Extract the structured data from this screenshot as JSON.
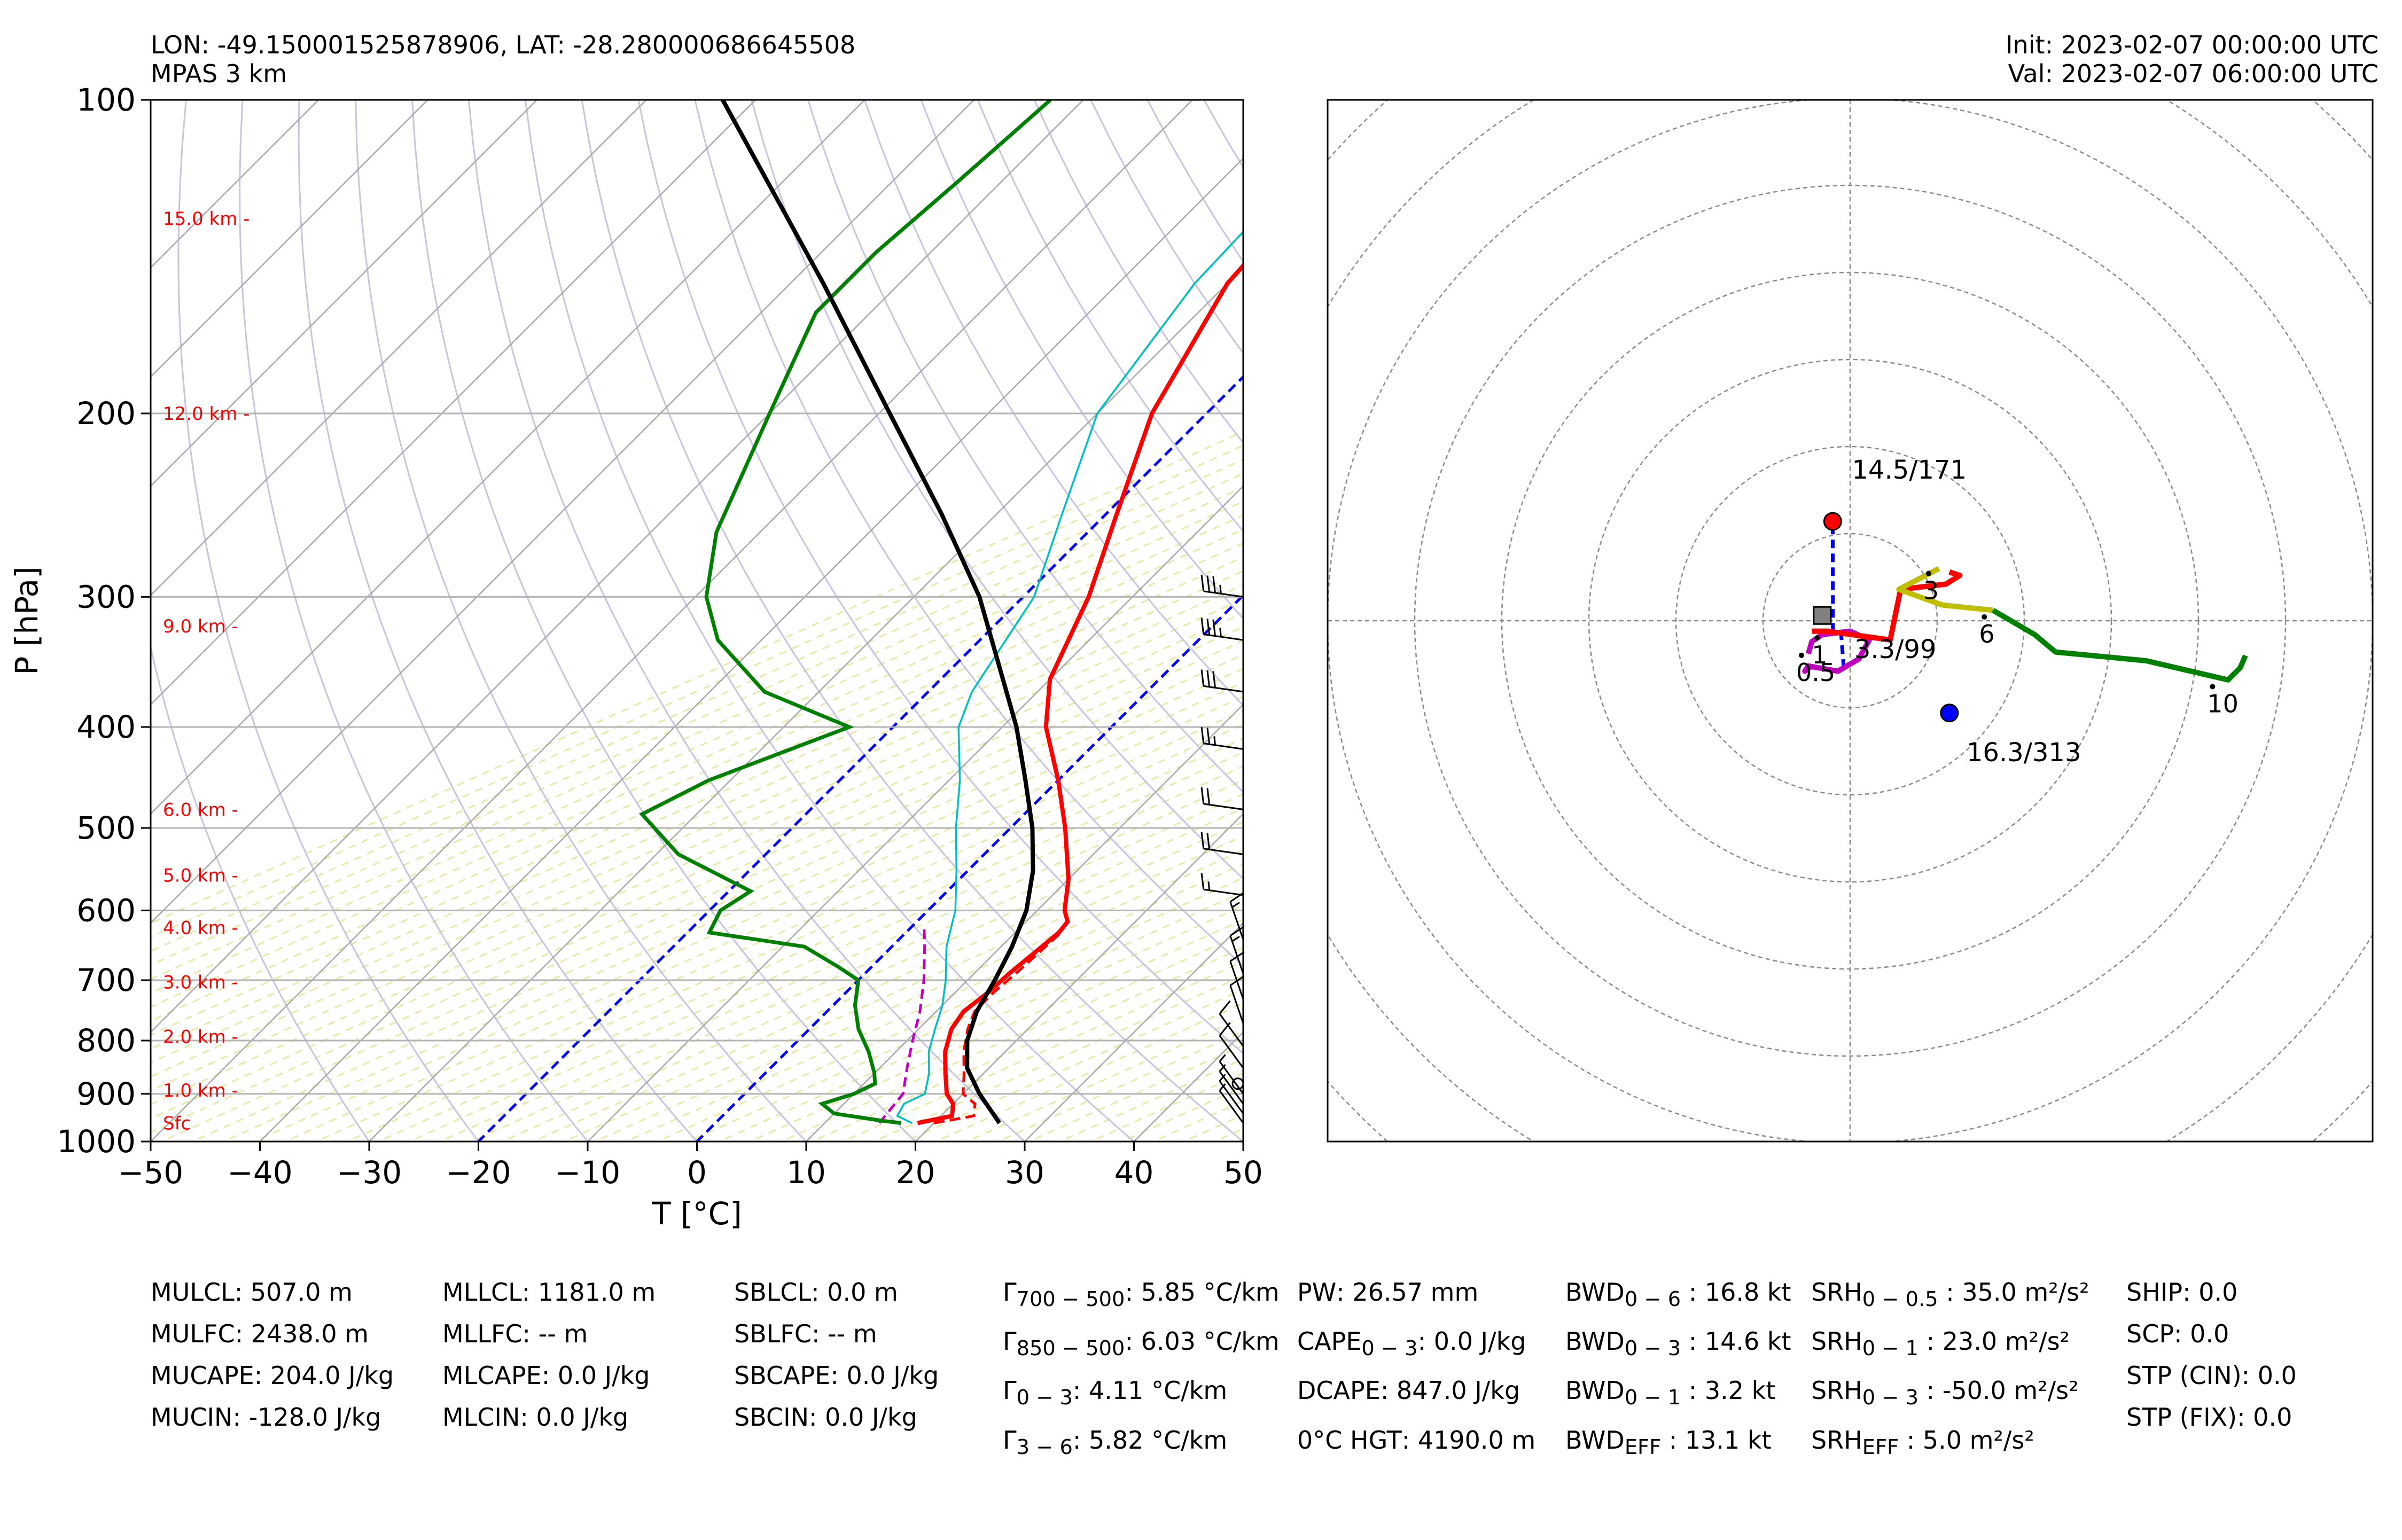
{
  "header": {
    "location": "LON: -49.150001525878906, LAT: -28.280000686645508",
    "model": "MPAS 3 km",
    "init": "Init: 2023-02-07 00:00:00 UTC",
    "valid": "Val: 2023-02-07 06:00:00 UTC"
  },
  "colors": {
    "temperature": "#ff0000",
    "virtual_temperature": "#ff0000",
    "dewpoint": "#008000",
    "wetbulb": "#00bfbf",
    "parcel": "#000000",
    "downdraft": "#bf00bf",
    "isotherm_0_minus20": "#0000ff",
    "hodo_0_1km": "#bf00bf",
    "hodo_1_3km": "#ff0000",
    "hodo_3_6km": "#bfbf00",
    "hodo_6_10km": "#008000"
  },
  "chart_data": [
    {
      "type": "line",
      "title": "",
      "xlabel": "T [°C]",
      "ylabel": "P [hPa]",
      "xlim": [
        -50,
        50
      ],
      "ylim": [
        1000,
        100
      ],
      "y_scale": "log",
      "skew": 45,
      "x_ticks": [
        "−50",
        "−40",
        "−30",
        "−20",
        "−10",
        "0",
        "10",
        "20",
        "30",
        "40",
        "50"
      ],
      "y_ticks": [
        "100",
        "200",
        "300",
        "400",
        "500",
        "600",
        "700",
        "800",
        "900",
        "1000"
      ],
      "height_labels": [
        {
          "label": "15.0 km -",
          "p": 130
        },
        {
          "label": "12.0 km -",
          "p": 200
        },
        {
          "label": "9.0 km -",
          "p": 320
        },
        {
          "label": "6.0 km -",
          "p": 480
        },
        {
          "label": "5.0 km -",
          "p": 555
        },
        {
          "label": "4.0 km -",
          "p": 623
        },
        {
          "label": "3.0 km -",
          "p": 703
        },
        {
          "label": "2.0 km -",
          "p": 793
        },
        {
          "label": "1.0 km -",
          "p": 893
        },
        {
          "label": "Sfc",
          "p": 960
        }
      ],
      "series": [
        {
          "name": "",
          "key": "temperature",
          "points": [
            [
              960,
              18.5
            ],
            [
              945,
              21
            ],
            [
              920,
              20
            ],
            [
              900,
              18.5
            ],
            [
              860,
              16.5
            ],
            [
              820,
              14.5
            ],
            [
              780,
              13
            ],
            [
              750,
              12.5
            ],
            [
              720,
              13
            ],
            [
              690,
              13.2
            ],
            [
              660,
              13.6
            ],
            [
              630,
              14
            ],
            [
              615,
              13.8
            ],
            [
              600,
              12.5
            ],
            [
              560,
              10
            ],
            [
              500,
              5
            ],
            [
              450,
              0
            ],
            [
              400,
              -6
            ],
            [
              360,
              -10
            ],
            [
              300,
              -14
            ],
            [
              250,
              -19
            ],
            [
              200,
              -25
            ],
            [
              150,
              -30
            ],
            [
              120,
              -31
            ],
            [
              100,
              -32
            ]
          ]
        },
        {
          "name": "",
          "key": "virtual_temperature",
          "points": [
            [
              960,
              20
            ],
            [
              945,
              23
            ],
            [
              920,
              22
            ],
            [
              900,
              20
            ],
            [
              860,
              18.2
            ],
            [
              820,
              16.2
            ],
            [
              780,
              14.5
            ],
            [
              750,
              13.5
            ],
            [
              720,
              13.5
            ],
            [
              690,
              13.8
            ],
            [
              660,
              14
            ],
            [
              630,
              14.2
            ]
          ]
        },
        {
          "name": "",
          "key": "wetbulb",
          "points": [
            [
              960,
              18
            ],
            [
              945,
              16
            ],
            [
              920,
              15.5
            ],
            [
              900,
              16.5
            ],
            [
              860,
              15
            ],
            [
              820,
              13
            ],
            [
              780,
              11.5
            ],
            [
              740,
              10
            ],
            [
              700,
              8
            ],
            [
              650,
              5
            ],
            [
              600,
              2.5
            ],
            [
              550,
              -1
            ],
            [
              500,
              -5
            ],
            [
              450,
              -9
            ],
            [
              400,
              -14
            ],
            [
              370,
              -16
            ],
            [
              300,
              -19
            ],
            [
              250,
              -24
            ],
            [
              200,
              -30
            ],
            [
              150,
              -33
            ],
            [
              100,
              -34
            ]
          ]
        },
        {
          "name": "",
          "key": "dewpoint",
          "points": [
            [
              960,
              17
            ],
            [
              955,
              15
            ],
            [
              940,
              10
            ],
            [
              920,
              8
            ],
            [
              900,
              10
            ],
            [
              880,
              11
            ],
            [
              860,
              10
            ],
            [
              820,
              7.5
            ],
            [
              780,
              4.5
            ],
            [
              740,
              2
            ],
            [
              700,
              0
            ],
            [
              680,
              -3
            ],
            [
              650,
              -8
            ],
            [
              630,
              -18
            ],
            [
              600,
              -19
            ],
            [
              575,
              -18
            ],
            [
              530,
              -28
            ],
            [
              485,
              -35
            ],
            [
              450,
              -32
            ],
            [
              400,
              -24
            ],
            [
              370,
              -35
            ],
            [
              330,
              -44
            ],
            [
              300,
              -49
            ],
            [
              260,
              -54
            ],
            [
              200,
              -60
            ],
            [
              160,
              -65
            ],
            [
              140,
              -65
            ],
            [
              120,
              -64
            ],
            [
              100,
              -63
            ]
          ]
        },
        {
          "name": "",
          "key": "parcel",
          "points": [
            [
              960,
              26
            ],
            [
              900,
              21.5
            ],
            [
              850,
              18
            ],
            [
              800,
              15.5
            ],
            [
              750,
              13.7
            ],
            [
              700,
              12.5
            ],
            [
              650,
              11
            ],
            [
              600,
              9
            ],
            [
              550,
              6
            ],
            [
              500,
              2
            ],
            [
              450,
              -3
            ],
            [
              400,
              -8.7
            ],
            [
              350,
              -15.8
            ],
            [
              300,
              -24
            ],
            [
              250,
              -35
            ],
            [
              200,
              -49
            ],
            [
              150,
              -67
            ],
            [
              100,
              -93
            ]
          ]
        },
        {
          "name": "",
          "key": "downdraft",
          "points": [
            [
              960,
              15
            ],
            [
              900,
              14.5
            ],
            [
              850,
              12.5
            ],
            [
              800,
              10.5
            ],
            [
              750,
              8.5
            ],
            [
              700,
              6
            ],
            [
              650,
              3
            ],
            [
              620,
              1
            ]
          ]
        }
      ],
      "wind_barbs_kt": [
        {
          "p": 960,
          "speed": 5
        },
        {
          "p": 940,
          "speed": 5
        },
        {
          "p": 920,
          "speed": 5
        },
        {
          "p": 900,
          "speed": 5
        },
        {
          "p": 880,
          "speed": 0
        },
        {
          "p": 850,
          "speed": 10
        },
        {
          "p": 810,
          "speed": 10
        },
        {
          "p": 770,
          "speed": 10
        },
        {
          "p": 730,
          "speed": 10
        },
        {
          "p": 690,
          "speed": 15
        },
        {
          "p": 640,
          "speed": 15
        },
        {
          "p": 580,
          "speed": 15
        },
        {
          "p": 530,
          "speed": 20
        },
        {
          "p": 480,
          "speed": 20
        },
        {
          "p": 420,
          "speed": 25
        },
        {
          "p": 370,
          "speed": 30
        },
        {
          "p": 330,
          "speed": 35
        },
        {
          "p": 300,
          "speed": 35
        }
      ]
    },
    {
      "type": "line",
      "title": "",
      "xlim": [
        -30,
        30
      ],
      "ylim": [
        -23,
        23
      ],
      "ring_step": 5,
      "series": [
        {
          "name": "",
          "key": "hodo_0_1km",
          "points": [
            [
              -2.2,
              -2.6
            ],
            [
              -2.6,
              -2.9
            ],
            [
              -2.4,
              -2.6
            ],
            [
              -0.7,
              -2.9
            ],
            [
              0.5,
              -2.2
            ],
            [
              1.1,
              -1.1
            ],
            [
              0,
              -0.6
            ],
            [
              -1.6,
              -0.8
            ],
            [
              -2.2,
              -1.2
            ],
            [
              -2.4,
              -1.9
            ]
          ]
        },
        {
          "name": "",
          "key": "hodo_1_3km",
          "points": [
            [
              -2.2,
              -0.6
            ],
            [
              -1.3,
              -0.6
            ],
            [
              2.3,
              -1.1
            ],
            [
              2.9,
              1.8
            ],
            [
              5.5,
              2.1
            ],
            [
              6.3,
              2.6
            ],
            [
              5.7,
              2.8
            ]
          ]
        },
        {
          "name": "",
          "key": "hodo_3_6km",
          "points": [
            [
              5.1,
              3.0
            ],
            [
              2.8,
              1.8
            ],
            [
              5.3,
              0.9
            ],
            [
              8.2,
              0.6
            ]
          ]
        },
        {
          "name": "",
          "key": "hodo_6_10km",
          "points": [
            [
              8.2,
              0.6
            ],
            [
              10.6,
              -0.8
            ],
            [
              11.8,
              -1.8
            ],
            [
              17,
              -2.3
            ],
            [
              21.7,
              -3.4
            ],
            [
              22.4,
              -2.7
            ],
            [
              22.7,
              -2.0
            ]
          ]
        }
      ],
      "height_labels": [
        {
          "label": "0.5",
          "u": -3.1,
          "v": -2.6
        },
        {
          "label": "1",
          "u": -2.2,
          "v": -1.6
        },
        {
          "label": "3",
          "u": 4.2,
          "v": 2.1
        },
        {
          "label": "6",
          "u": 7.4,
          "v": -0.4
        },
        {
          "label": "10",
          "u": 20.5,
          "v": -4.4
        }
      ],
      "markers": [
        {
          "label": "14.5/171",
          "u": -1.0,
          "v": 5.7,
          "color": "#ff0000",
          "shape": "circle"
        },
        {
          "label": "16.3/313",
          "u": 5.7,
          "v": -5.3,
          "color": "#0000ff",
          "shape": "circle"
        },
        {
          "label": "3.3/99",
          "u": -1.6,
          "v": 0.3,
          "color": "#808080",
          "shape": "square"
        }
      ]
    }
  ],
  "indices": {
    "col1": [
      "MULCL: 507.0 m",
      "MULFC: 2438.0 m",
      "MUCAPE: 204.0 J/kg",
      "MUCIN: -128.0 J/kg"
    ],
    "col2": [
      "MLLCL: 1181.0 m",
      "MLLFC: -- m",
      "MLCAPE: 0.0 J/kg",
      "MLCIN: 0.0 J/kg"
    ],
    "col3": [
      "SBLCL: 0.0 m",
      "SBLFC: -- m",
      "SBCAPE: 0.0 J/kg",
      "SBCIN: 0.0 J/kg"
    ],
    "col4": [
      {
        "sym": "Γ",
        "sub": "700 − 500",
        "rest": ": 5.85 °C/km"
      },
      {
        "sym": "Γ",
        "sub": "850 − 500",
        "rest": ": 6.03 °C/km"
      },
      {
        "sym": "Γ",
        "sub": "0 − 3",
        "rest": ": 4.11 °C/km"
      },
      {
        "sym": "Γ",
        "sub": "3 − 6",
        "rest": ": 5.82 °C/km"
      }
    ],
    "col5": [
      {
        "sym": "PW",
        "sub": "",
        "rest": ": 26.57 mm"
      },
      {
        "sym": "CAPE",
        "sub": "0 − 3",
        "rest": ": 0.0 J/kg"
      },
      {
        "sym": "DCAPE",
        "sub": "",
        "rest": ": 847.0 J/kg"
      },
      {
        "sym": "0°C HGT",
        "sub": "",
        "rest": ": 4190.0 m"
      }
    ],
    "col6": [
      {
        "sym": "BWD",
        "sub": "0 − 6",
        "rest": " : 16.8 kt"
      },
      {
        "sym": "BWD",
        "sub": "0 − 3",
        "rest": " : 14.6 kt"
      },
      {
        "sym": "BWD",
        "sub": "0 − 1",
        "rest": " : 3.2 kt"
      },
      {
        "sym": "BWD",
        "sub": "EFF",
        "rest": " : 13.1 kt"
      }
    ],
    "col7": [
      {
        "sym": "SRH",
        "sub": "0 − 0.5",
        "rest": " : 35.0 m²/s²"
      },
      {
        "sym": "SRH",
        "sub": "0 − 1",
        "rest": " : 23.0 m²/s²"
      },
      {
        "sym": "SRH",
        "sub": "0 − 3",
        "rest": " : -50.0 m²/s²"
      },
      {
        "sym": "SRH",
        "sub": "EFF",
        "rest": " : 5.0 m²/s²"
      }
    ],
    "col8": [
      "SHIP: 0.0",
      "SCP: 0.0",
      "STP (CIN): 0.0",
      "STP (FIX): 0.0"
    ]
  }
}
